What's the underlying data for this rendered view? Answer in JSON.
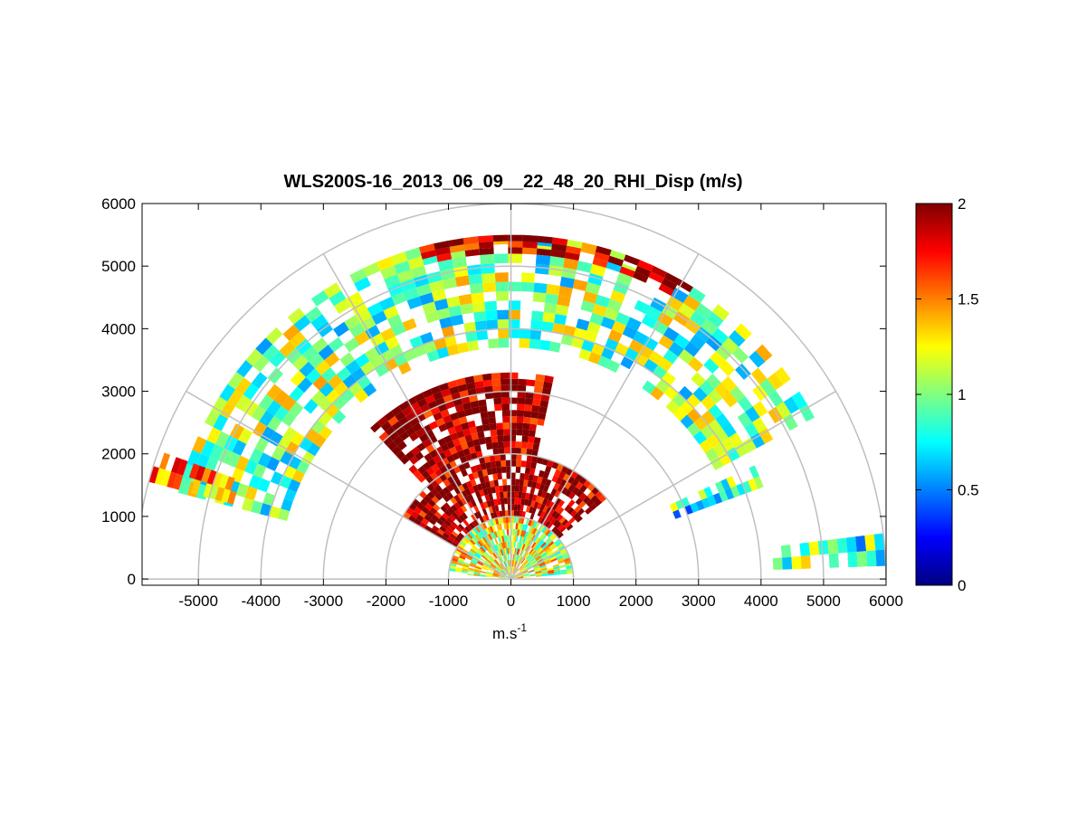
{
  "chart_data": {
    "type": "heatmap",
    "subtype": "polar-rhi",
    "title": "WLS200S-16_2013_06_09__22_48_20_RHI_Disp (m/s)",
    "xlabel": "m.s",
    "xlabel_sup": "-1",
    "ylabel": "",
    "xlim": [
      -5900,
      6000
    ],
    "ylim": [
      -100,
      6000
    ],
    "xticks": [
      -5000,
      -4000,
      -3000,
      -2000,
      -1000,
      0,
      1000,
      2000,
      3000,
      4000,
      5000,
      6000
    ],
    "yticks": [
      0,
      1000,
      2000,
      3000,
      4000,
      5000,
      6000
    ],
    "xtick_labels": [
      "-5000",
      "-4000",
      "-3000",
      "-2000",
      "-1000",
      "0",
      "1000",
      "2000",
      "3000",
      "4000",
      "5000",
      "6000"
    ],
    "ytick_labels": [
      "0",
      "1000",
      "2000",
      "3000",
      "4000",
      "5000",
      "6000"
    ],
    "polar_grid_ranges": [
      1000,
      2000,
      3000,
      4000,
      5000,
      6000
    ],
    "polar_grid_angles_deg": [
      0,
      30,
      60,
      90,
      120,
      150,
      180
    ],
    "colorbar": {
      "colormap": "jet",
      "min": 0,
      "max": 2,
      "ticks": [
        0,
        0.5,
        1,
        1.5,
        2
      ],
      "tick_labels": [
        "0",
        "0.5",
        "1",
        "1.5",
        "2"
      ]
    },
    "regions": [
      {
        "r": [
          0,
          1000
        ],
        "el": [
          5,
          175
        ],
        "value": 1.2
      },
      {
        "r": [
          1000,
          2000
        ],
        "el": [
          40,
          150
        ],
        "value": 2.0
      },
      {
        "r": [
          2000,
          3300
        ],
        "el": [
          78,
          132
        ],
        "value": 2.0
      },
      {
        "r": [
          3700,
          5500
        ],
        "el": [
          28,
          165
        ],
        "value": 1.0
      },
      {
        "r": [
          5200,
          5500
        ],
        "el": [
          58,
          108
        ],
        "value": 1.9
      },
      {
        "r": [
          4200,
          6000
        ],
        "el": [
          2,
          5
        ],
        "value": 0.9
      },
      {
        "r": [
          4600,
          6000
        ],
        "el": [
          160,
          163
        ],
        "value": 1.4
      },
      {
        "r": [
          2800,
          4300
        ],
        "el": [
          20,
          23
        ],
        "value": 0.8
      }
    ]
  }
}
